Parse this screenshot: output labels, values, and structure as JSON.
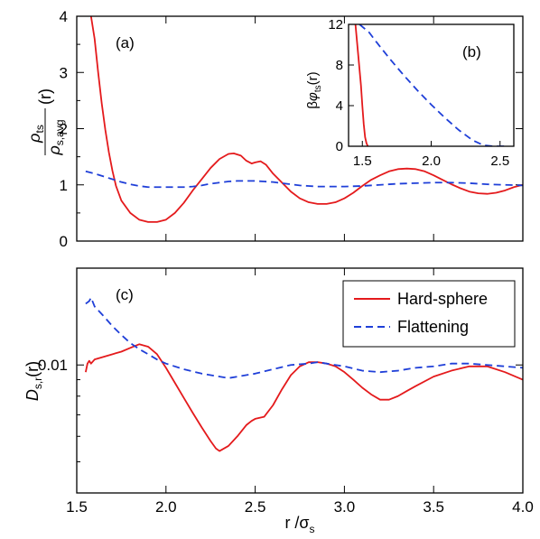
{
  "chart_data": [
    {
      "panel": "(a)",
      "type": "line",
      "ylabel": {
        "num_main": "ρ",
        "num_sub": "ts",
        "den_main": "ρ",
        "den_sub": "s,avg",
        "arg": "(r)"
      },
      "xlim": [
        1.5,
        4.0
      ],
      "ylim": [
        0,
        4
      ],
      "yticks": [
        "0",
        "1",
        "2",
        "3",
        "4"
      ],
      "series": [
        {
          "name": "Hard-sphere",
          "color": "#e41a1c",
          "style": "solid",
          "points": [
            [
              1.58,
              4.0
            ],
            [
              1.6,
              3.6
            ],
            [
              1.62,
              3.0
            ],
            [
              1.64,
              2.45
            ],
            [
              1.66,
              1.98
            ],
            [
              1.68,
              1.58
            ],
            [
              1.7,
              1.25
            ],
            [
              1.72,
              0.98
            ],
            [
              1.75,
              0.72
            ],
            [
              1.8,
              0.5
            ],
            [
              1.85,
              0.38
            ],
            [
              1.9,
              0.34
            ],
            [
              1.95,
              0.34
            ],
            [
              2.0,
              0.38
            ],
            [
              2.05,
              0.5
            ],
            [
              2.1,
              0.68
            ],
            [
              2.15,
              0.9
            ],
            [
              2.2,
              1.1
            ],
            [
              2.25,
              1.3
            ],
            [
              2.3,
              1.46
            ],
            [
              2.35,
              1.55
            ],
            [
              2.38,
              1.56
            ],
            [
              2.42,
              1.52
            ],
            [
              2.45,
              1.43
            ],
            [
              2.48,
              1.38
            ],
            [
              2.5,
              1.4
            ],
            [
              2.53,
              1.42
            ],
            [
              2.56,
              1.36
            ],
            [
              2.6,
              1.2
            ],
            [
              2.65,
              1.04
            ],
            [
              2.7,
              0.88
            ],
            [
              2.75,
              0.76
            ],
            [
              2.8,
              0.69
            ],
            [
              2.85,
              0.66
            ],
            [
              2.9,
              0.66
            ],
            [
              2.95,
              0.69
            ],
            [
              3.0,
              0.76
            ],
            [
              3.05,
              0.86
            ],
            [
              3.1,
              0.98
            ],
            [
              3.15,
              1.09
            ],
            [
              3.2,
              1.17
            ],
            [
              3.25,
              1.24
            ],
            [
              3.3,
              1.28
            ],
            [
              3.35,
              1.29
            ],
            [
              3.4,
              1.28
            ],
            [
              3.45,
              1.24
            ],
            [
              3.5,
              1.17
            ],
            [
              3.55,
              1.09
            ],
            [
              3.6,
              1.01
            ],
            [
              3.65,
              0.94
            ],
            [
              3.7,
              0.88
            ],
            [
              3.75,
              0.85
            ],
            [
              3.8,
              0.84
            ],
            [
              3.85,
              0.86
            ],
            [
              3.9,
              0.9
            ],
            [
              3.95,
              0.96
            ],
            [
              4.0,
              1.0
            ]
          ]
        },
        {
          "name": "Flattening",
          "color": "#1f3fd8",
          "style": "dashed",
          "points": [
            [
              1.55,
              1.24
            ],
            [
              1.6,
              1.2
            ],
            [
              1.65,
              1.15
            ],
            [
              1.7,
              1.1
            ],
            [
              1.75,
              1.05
            ],
            [
              1.8,
              1.01
            ],
            [
              1.85,
              0.98
            ],
            [
              1.9,
              0.96
            ],
            [
              1.95,
              0.96
            ],
            [
              2.0,
              0.96
            ],
            [
              2.05,
              0.96
            ],
            [
              2.1,
              0.96
            ],
            [
              2.15,
              0.97
            ],
            [
              2.2,
              0.99
            ],
            [
              2.25,
              1.02
            ],
            [
              2.3,
              1.04
            ],
            [
              2.35,
              1.06
            ],
            [
              2.4,
              1.07
            ],
            [
              2.45,
              1.07
            ],
            [
              2.5,
              1.07
            ],
            [
              2.55,
              1.06
            ],
            [
              2.6,
              1.05
            ],
            [
              2.65,
              1.03
            ],
            [
              2.7,
              1.01
            ],
            [
              2.75,
              0.99
            ],
            [
              2.8,
              0.98
            ],
            [
              2.85,
              0.97
            ],
            [
              2.9,
              0.97
            ],
            [
              3.0,
              0.97
            ],
            [
              3.1,
              0.98
            ],
            [
              3.2,
              1.0
            ],
            [
              3.3,
              1.02
            ],
            [
              3.4,
              1.03
            ],
            [
              3.5,
              1.04
            ],
            [
              3.6,
              1.04
            ],
            [
              3.7,
              1.03
            ],
            [
              3.8,
              1.01
            ],
            [
              3.9,
              1.0
            ],
            [
              4.0,
              0.99
            ]
          ]
        }
      ]
    },
    {
      "panel": "(b)",
      "type": "line",
      "ylabel": {
        "prefix": "β",
        "main": "φ",
        "sub": "ts",
        "arg": "(r)"
      },
      "xlim": [
        1.4,
        2.6
      ],
      "ylim": [
        0,
        12
      ],
      "xticks": [
        "1.5",
        "2.0",
        "2.5"
      ],
      "yticks": [
        "0",
        "4",
        "8",
        "12"
      ],
      "series": [
        {
          "name": "Hard-sphere",
          "color": "#e41a1c",
          "style": "solid",
          "points": [
            [
              1.45,
              12.0
            ],
            [
              1.47,
              9.0
            ],
            [
              1.49,
              6.0
            ],
            [
              1.5,
              4.0
            ],
            [
              1.51,
              2.2
            ],
            [
              1.52,
              0.9
            ],
            [
              1.53,
              0.3
            ],
            [
              1.54,
              0.0
            ]
          ]
        },
        {
          "name": "Flattening",
          "color": "#1f3fd8",
          "style": "dashed",
          "points": [
            [
              1.48,
              12.0
            ],
            [
              1.55,
              11.2
            ],
            [
              1.6,
              10.3
            ],
            [
              1.7,
              8.6
            ],
            [
              1.8,
              7.0
            ],
            [
              1.9,
              5.5
            ],
            [
              2.0,
              4.1
            ],
            [
              2.1,
              2.8
            ],
            [
              2.2,
              1.6
            ],
            [
              2.3,
              0.6
            ],
            [
              2.38,
              0.1
            ],
            [
              2.45,
              0.0
            ],
            [
              2.55,
              0.0
            ]
          ]
        }
      ]
    },
    {
      "panel": "(c)",
      "type": "line",
      "ylabel": {
        "main": "D",
        "sub": "s,r",
        "arg": "(r)"
      },
      "xlabel": {
        "main": "r /σ",
        "sub": "s"
      },
      "xlim": [
        1.5,
        4.0
      ],
      "log_y": true,
      "ylim": [
        0.004,
        0.02
      ],
      "xticks": [
        "1.5",
        "2.0",
        "2.5",
        "3.0",
        "3.5",
        "4.0"
      ],
      "ytick_labels": [
        "0.01"
      ],
      "legend_position": "top-right",
      "series": [
        {
          "name": "Hard-sphere",
          "color": "#e41a1c",
          "style": "solid",
          "points": [
            [
              1.55,
              0.0095
            ],
            [
              1.56,
              0.0101
            ],
            [
              1.57,
              0.0103
            ],
            [
              1.58,
              0.0101
            ],
            [
              1.6,
              0.0104
            ],
            [
              1.65,
              0.0106
            ],
            [
              1.7,
              0.0108
            ],
            [
              1.75,
              0.011
            ],
            [
              1.8,
              0.0113
            ],
            [
              1.85,
              0.0116
            ],
            [
              1.9,
              0.0114
            ],
            [
              1.95,
              0.0108
            ],
            [
              2.0,
              0.0098
            ],
            [
              2.05,
              0.0088
            ],
            [
              2.1,
              0.0079
            ],
            [
              2.15,
              0.0071
            ],
            [
              2.2,
              0.0064
            ],
            [
              2.25,
              0.0058
            ],
            [
              2.28,
              0.0055
            ],
            [
              2.3,
              0.0054
            ],
            [
              2.35,
              0.0056
            ],
            [
              2.4,
              0.006
            ],
            [
              2.45,
              0.0065
            ],
            [
              2.48,
              0.0067
            ],
            [
              2.5,
              0.0068
            ],
            [
              2.55,
              0.0069
            ],
            [
              2.6,
              0.0075
            ],
            [
              2.65,
              0.0084
            ],
            [
              2.7,
              0.0093
            ],
            [
              2.75,
              0.0099
            ],
            [
              2.8,
              0.0102
            ],
            [
              2.85,
              0.0102
            ],
            [
              2.9,
              0.0101
            ],
            [
              2.95,
              0.0099
            ],
            [
              3.0,
              0.0095
            ],
            [
              3.05,
              0.009
            ],
            [
              3.1,
              0.0085
            ],
            [
              3.15,
              0.0081
            ],
            [
              3.2,
              0.0078
            ],
            [
              3.25,
              0.0078
            ],
            [
              3.3,
              0.008
            ],
            [
              3.35,
              0.0083
            ],
            [
              3.4,
              0.0086
            ],
            [
              3.5,
              0.0092
            ],
            [
              3.6,
              0.0096
            ],
            [
              3.7,
              0.0099
            ],
            [
              3.8,
              0.0099
            ],
            [
              3.9,
              0.0095
            ],
            [
              4.0,
              0.009
            ]
          ]
        },
        {
          "name": "Flattening",
          "color": "#1f3fd8",
          "style": "dashed",
          "points": [
            [
              1.55,
              0.0155
            ],
            [
              1.57,
              0.0158
            ],
            [
              1.58,
              0.0162
            ],
            [
              1.6,
              0.0152
            ],
            [
              1.65,
              0.0142
            ],
            [
              1.7,
              0.0132
            ],
            [
              1.75,
              0.0124
            ],
            [
              1.8,
              0.0117
            ],
            [
              1.85,
              0.0112
            ],
            [
              1.9,
              0.0108
            ],
            [
              1.95,
              0.0104
            ],
            [
              2.0,
              0.0101
            ],
            [
              2.1,
              0.0097
            ],
            [
              2.2,
              0.0094
            ],
            [
              2.3,
              0.0092
            ],
            [
              2.35,
              0.0091
            ],
            [
              2.4,
              0.0092
            ],
            [
              2.5,
              0.0094
            ],
            [
              2.6,
              0.0097
            ],
            [
              2.7,
              0.01
            ],
            [
              2.8,
              0.0101
            ],
            [
              2.85,
              0.0102
            ],
            [
              2.9,
              0.0101
            ],
            [
              3.0,
              0.0099
            ],
            [
              3.1,
              0.0096
            ],
            [
              3.2,
              0.0095
            ],
            [
              3.3,
              0.0096
            ],
            [
              3.4,
              0.0098
            ],
            [
              3.5,
              0.0099
            ],
            [
              3.6,
              0.0101
            ],
            [
              3.7,
              0.0101
            ],
            [
              3.8,
              0.01
            ],
            [
              3.9,
              0.0099
            ],
            [
              4.0,
              0.0098
            ]
          ]
        }
      ]
    }
  ]
}
